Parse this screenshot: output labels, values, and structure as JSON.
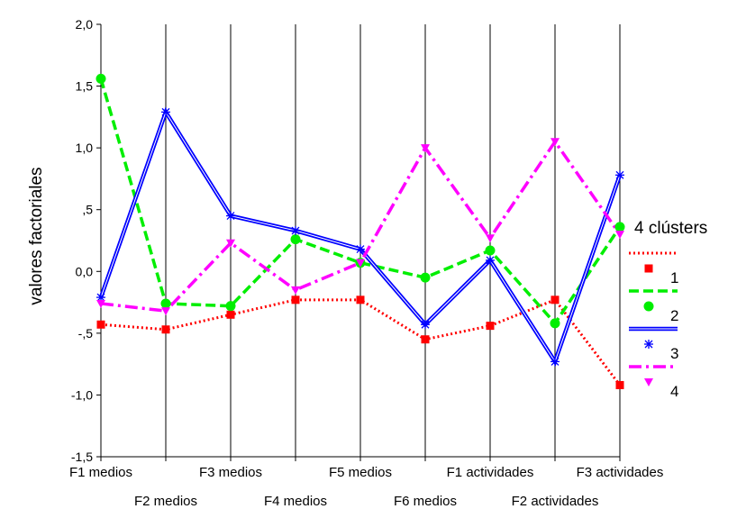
{
  "chart_data": {
    "type": "line",
    "ylabel": "valores factoriales",
    "ylim": [
      -1.5,
      2.0
    ],
    "yticks": [
      {
        "value": 2.0,
        "label": "2,0"
      },
      {
        "value": 1.5,
        "label": "1,5"
      },
      {
        "value": 1.0,
        "label": "1,0"
      },
      {
        "value": 0.5,
        "label": ",5"
      },
      {
        "value": 0.0,
        "label": "0,0"
      },
      {
        "value": -0.5,
        "label": "-,5"
      },
      {
        "value": -1.0,
        "label": "-1,0"
      },
      {
        "value": -1.5,
        "label": "-1,5"
      }
    ],
    "categories": [
      "F1 medios",
      "F2 medios",
      "F3 medios",
      "F4 medios",
      "F5 medios",
      "F6 medios",
      "F1 actividades",
      "F2 actividades",
      "F3 actividades"
    ],
    "grid": "vertical",
    "legend": {
      "title": "4 clústers",
      "position": "right"
    },
    "series": [
      {
        "name": "1",
        "color": "#ff0000",
        "dash": "dotted",
        "marker": "square",
        "values": [
          -0.43,
          -0.47,
          -0.35,
          -0.23,
          -0.23,
          -0.55,
          -0.44,
          -0.23,
          -0.92
        ]
      },
      {
        "name": "2",
        "color": "#00ee00",
        "dash": "dashed",
        "marker": "circle",
        "values": [
          1.56,
          -0.26,
          -0.28,
          0.26,
          0.07,
          -0.05,
          0.17,
          -0.42,
          0.36
        ]
      },
      {
        "name": "3",
        "color": "#0000ff",
        "dash": "solid",
        "marker": "asterisk",
        "values": [
          -0.21,
          1.29,
          0.45,
          0.33,
          0.18,
          -0.43,
          0.09,
          -0.73,
          0.78
        ]
      },
      {
        "name": "4",
        "color": "#ff00ff",
        "dash": "dashdot",
        "marker": "triangle-down",
        "values": [
          -0.26,
          -0.32,
          0.23,
          -0.15,
          0.07,
          1.0,
          0.27,
          1.05,
          0.3
        ]
      }
    ]
  }
}
